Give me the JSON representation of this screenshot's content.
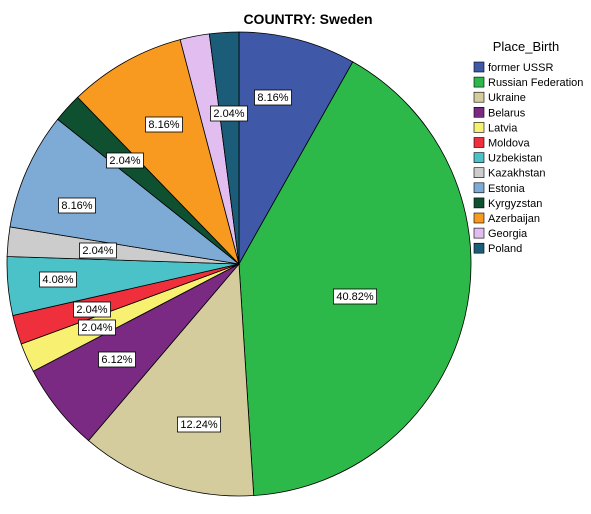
{
  "chart_data": {
    "type": "pie",
    "title": "COUNTRY: Sweden",
    "legend_title": "Place_Birth",
    "legend_position": "right",
    "slices": [
      {
        "label": "former USSR",
        "value": 8.16,
        "display": "8.16%",
        "color": "#3f59a8"
      },
      {
        "label": "Russian Federation",
        "value": 40.82,
        "display": "40.82%",
        "color": "#2db84a"
      },
      {
        "label": "Ukraine",
        "value": 12.24,
        "display": "12.24%",
        "color": "#d4cc9c"
      },
      {
        "label": "Belarus",
        "value": 6.12,
        "display": "6.12%",
        "color": "#7a2a82"
      },
      {
        "label": "Latvia",
        "value": 2.04,
        "display": "2.04%",
        "color": "#f8f070"
      },
      {
        "label": "Moldova",
        "value": 2.04,
        "display": "2.04%",
        "color": "#ef2f3c"
      },
      {
        "label": "Uzbekistan",
        "value": 4.08,
        "display": "4.08%",
        "color": "#4bc2c8"
      },
      {
        "label": "Kazakhstan",
        "value": 2.04,
        "display": "2.04%",
        "color": "#cccccc"
      },
      {
        "label": "Estonia",
        "value": 8.16,
        "display": "8.16%",
        "color": "#7eaad6"
      },
      {
        "label": "Kyrgyzstan",
        "value": 2.04,
        "display": "2.04%",
        "color": "#0f5030"
      },
      {
        "label": "Azerbaijan",
        "value": 8.16,
        "display": "8.16%",
        "color": "#f89a20"
      },
      {
        "label": "Georgia",
        "value": 2.04,
        "display": "2.04%",
        "color": "#e2bef0"
      },
      {
        "label": "Poland",
        "value": 2.04,
        "display": "2.04%",
        "color": "#1b5c78"
      }
    ]
  }
}
